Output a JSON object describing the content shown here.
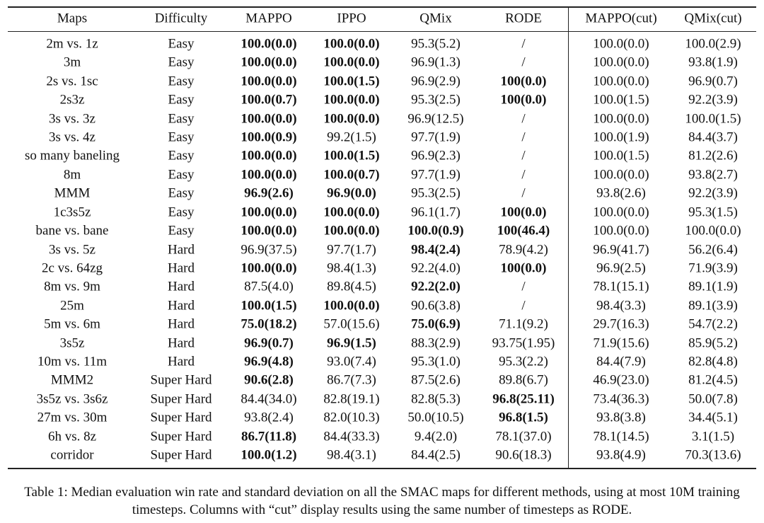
{
  "table": {
    "header": [
      "Maps",
      "Difficulty",
      "MAPPO",
      "IPPO",
      "QMix",
      "RODE",
      "MAPPO(cut)",
      "QMix(cut)"
    ],
    "rows": [
      {
        "cells": [
          "2m vs. 1z",
          "Easy",
          "100.0(0.0)",
          "100.0(0.0)",
          "95.3(5.2)",
          "/",
          "100.0(0.0)",
          "100.0(2.9)"
        ],
        "bold": [
          2,
          3
        ]
      },
      {
        "cells": [
          "3m",
          "Easy",
          "100.0(0.0)",
          "100.0(0.0)",
          "96.9(1.3)",
          "/",
          "100.0(0.0)",
          "93.8(1.9)"
        ],
        "bold": [
          2,
          3
        ]
      },
      {
        "cells": [
          "2s vs. 1sc",
          "Easy",
          "100.0(0.0)",
          "100.0(1.5)",
          "96.9(2.9)",
          "100(0.0)",
          "100.0(0.0)",
          "96.9(0.7)"
        ],
        "bold": [
          2,
          3,
          5
        ]
      },
      {
        "cells": [
          "2s3z",
          "Easy",
          "100.0(0.7)",
          "100.0(0.0)",
          "95.3(2.5)",
          "100(0.0)",
          "100.0(1.5)",
          "92.2(3.9)"
        ],
        "bold": [
          2,
          3,
          5
        ]
      },
      {
        "cells": [
          "3s vs. 3z",
          "Easy",
          "100.0(0.0)",
          "100.0(0.0)",
          "96.9(12.5)",
          "/",
          "100.0(0.0)",
          "100.0(1.5)"
        ],
        "bold": [
          2,
          3
        ]
      },
      {
        "cells": [
          "3s vs. 4z",
          "Easy",
          "100.0(0.9)",
          "99.2(1.5)",
          "97.7(1.9)",
          "/",
          "100.0(1.9)",
          "84.4(3.7)"
        ],
        "bold": [
          2
        ]
      },
      {
        "cells": [
          "so many baneling",
          "Easy",
          "100.0(0.0)",
          "100.0(1.5)",
          "96.9(2.3)",
          "/",
          "100.0(1.5)",
          "81.2(2.6)"
        ],
        "bold": [
          2,
          3
        ]
      },
      {
        "cells": [
          "8m",
          "Easy",
          "100.0(0.0)",
          "100.0(0.7)",
          "97.7(1.9)",
          "/",
          "100.0(0.0)",
          "93.8(2.7)"
        ],
        "bold": [
          2,
          3
        ]
      },
      {
        "cells": [
          "MMM",
          "Easy",
          "96.9(2.6)",
          "96.9(0.0)",
          "95.3(2.5)",
          "/",
          "93.8(2.6)",
          "92.2(3.9)"
        ],
        "bold": [
          2,
          3
        ]
      },
      {
        "cells": [
          "1c3s5z",
          "Easy",
          "100.0(0.0)",
          "100.0(0.0)",
          "96.1(1.7)",
          "100(0.0)",
          "100.0(0.0)",
          "95.3(1.5)"
        ],
        "bold": [
          2,
          3,
          5
        ]
      },
      {
        "cells": [
          "bane vs. bane",
          "Easy",
          "100.0(0.0)",
          "100.0(0.0)",
          "100.0(0.9)",
          "100(46.4)",
          "100.0(0.0)",
          "100.0(0.0)"
        ],
        "bold": [
          2,
          3,
          4,
          5
        ]
      },
      {
        "cells": [
          "3s vs. 5z",
          "Hard",
          "96.9(37.5)",
          "97.7(1.7)",
          "98.4(2.4)",
          "78.9(4.2)",
          "96.9(41.7)",
          "56.2(6.4)"
        ],
        "bold": [
          4
        ]
      },
      {
        "cells": [
          "2c vs. 64zg",
          "Hard",
          "100.0(0.0)",
          "98.4(1.3)",
          "92.2(4.0)",
          "100(0.0)",
          "96.9(2.5)",
          "71.9(3.9)"
        ],
        "bold": [
          2,
          5
        ]
      },
      {
        "cells": [
          "8m vs. 9m",
          "Hard",
          "87.5(4.0)",
          "89.8(4.5)",
          "92.2(2.0)",
          "/",
          "78.1(15.1)",
          "89.1(1.9)"
        ],
        "bold": [
          4
        ]
      },
      {
        "cells": [
          "25m",
          "Hard",
          "100.0(1.5)",
          "100.0(0.0)",
          "90.6(3.8)",
          "/",
          "98.4(3.3)",
          "89.1(3.9)"
        ],
        "bold": [
          2,
          3
        ]
      },
      {
        "cells": [
          "5m vs. 6m",
          "Hard",
          "75.0(18.2)",
          "57.0(15.6)",
          "75.0(6.9)",
          "71.1(9.2)",
          "29.7(16.3)",
          "54.7(2.2)"
        ],
        "bold": [
          2,
          4
        ]
      },
      {
        "cells": [
          "3s5z",
          "Hard",
          "96.9(0.7)",
          "96.9(1.5)",
          "88.3(2.9)",
          "93.75(1.95)",
          "71.9(15.6)",
          "85.9(5.2)"
        ],
        "bold": [
          2,
          3
        ]
      },
      {
        "cells": [
          "10m vs. 11m",
          "Hard",
          "96.9(4.8)",
          "93.0(7.4)",
          "95.3(1.0)",
          "95.3(2.2)",
          "84.4(7.9)",
          "82.8(4.8)"
        ],
        "bold": [
          2
        ]
      },
      {
        "cells": [
          "MMM2",
          "Super Hard",
          "90.6(2.8)",
          "86.7(7.3)",
          "87.5(2.6)",
          "89.8(6.7)",
          "46.9(23.0)",
          "81.2(4.5)"
        ],
        "bold": [
          2
        ]
      },
      {
        "cells": [
          "3s5z vs. 3s6z",
          "Super Hard",
          "84.4(34.0)",
          "82.8(19.1)",
          "82.8(5.3)",
          "96.8(25.11)",
          "73.4(36.3)",
          "50.0(7.8)"
        ],
        "bold": [
          5
        ]
      },
      {
        "cells": [
          "27m vs. 30m",
          "Super Hard",
          "93.8(2.4)",
          "82.0(10.3)",
          "50.0(10.5)",
          "96.8(1.5)",
          "93.8(3.8)",
          "34.4(5.1)"
        ],
        "bold": [
          5
        ]
      },
      {
        "cells": [
          "6h vs. 8z",
          "Super Hard",
          "86.7(11.8)",
          "84.4(33.3)",
          "9.4(2.0)",
          "78.1(37.0)",
          "78.1(14.5)",
          "3.1(1.5)"
        ],
        "bold": [
          2
        ]
      },
      {
        "cells": [
          "corridor",
          "Super Hard",
          "100.0(1.2)",
          "98.4(3.1)",
          "84.4(2.5)",
          "90.6(18.3)",
          "93.8(4.9)",
          "70.3(13.6)"
        ],
        "bold": [
          2
        ]
      }
    ],
    "caption": "Table 1: Median evaluation win rate and standard deviation on all the SMAC maps for different methods, using at most 10M training timesteps. Columns with “cut” display results using the same number of timesteps as RODE."
  }
}
